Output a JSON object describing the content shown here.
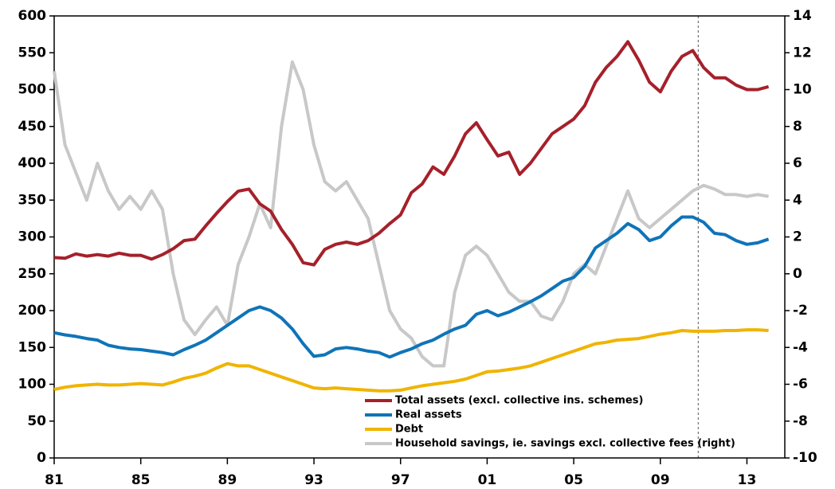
{
  "chart_data": {
    "type": "line",
    "x": [
      1981,
      1981.5,
      1982,
      1982.5,
      1983,
      1983.5,
      1984,
      1984.5,
      1985,
      1985.5,
      1986,
      1986.5,
      1987,
      1987.5,
      1988,
      1988.5,
      1989,
      1989.5,
      1990,
      1990.5,
      1991,
      1991.5,
      1992,
      1992.5,
      1993,
      1993.5,
      1994,
      1994.5,
      1995,
      1995.5,
      1996,
      1996.5,
      1997,
      1997.5,
      1998,
      1998.5,
      1999,
      1999.5,
      2000,
      2000.5,
      2001,
      2001.5,
      2002,
      2002.5,
      2003,
      2003.5,
      2004,
      2004.5,
      2005,
      2005.5,
      2006,
      2006.5,
      2007,
      2007.5,
      2008,
      2008.5,
      2009,
      2009.5,
      2010,
      2010.5,
      2011,
      2011.5,
      2012,
      2012.5,
      2013,
      2013.5,
      2014
    ],
    "series": [
      {
        "name": "Total assets (excl. collective ins. schemes)",
        "color": "#a5202a",
        "values": [
          272,
          271,
          277,
          274,
          276,
          274,
          278,
          275,
          275,
          270,
          276,
          284,
          295,
          297,
          315,
          332,
          348,
          362,
          365,
          345,
          335,
          310,
          290,
          265,
          262,
          283,
          290,
          293,
          290,
          295,
          305,
          318,
          330,
          360,
          372,
          395,
          385,
          410,
          440,
          455,
          432,
          410,
          415,
          385,
          400,
          420,
          440,
          450,
          460,
          478,
          510,
          530,
          545,
          565,
          540,
          510,
          497,
          525,
          545,
          553,
          530,
          516,
          516,
          506,
          500,
          500,
          504
        ]
      },
      {
        "name": "Real assets",
        "color": "#0f74b8",
        "values": [
          170,
          167,
          165,
          162,
          160,
          153,
          150,
          148,
          147,
          145,
          143,
          140,
          147,
          153,
          160,
          170,
          180,
          190,
          200,
          205,
          200,
          190,
          175,
          155,
          138,
          140,
          148,
          150,
          148,
          145,
          143,
          137,
          143,
          148,
          155,
          160,
          168,
          175,
          180,
          195,
          200,
          193,
          198,
          205,
          212,
          220,
          230,
          240,
          245,
          260,
          285,
          295,
          305,
          318,
          310,
          295,
          300,
          315,
          327,
          327,
          320,
          305,
          303,
          295,
          290,
          292,
          297
        ]
      },
      {
        "name": "Debt",
        "color": "#f0b400",
        "values": [
          93,
          96,
          98,
          99,
          100,
          99,
          99,
          100,
          101,
          100,
          99,
          103,
          108,
          111,
          115,
          122,
          128,
          125,
          125,
          120,
          115,
          110,
          105,
          100,
          95,
          94,
          95,
          94,
          93,
          92,
          91,
          91,
          92,
          95,
          98,
          100,
          102,
          104,
          107,
          112,
          117,
          118,
          120,
          122,
          125,
          130,
          135,
          140,
          145,
          150,
          155,
          157,
          160,
          161,
          162,
          165,
          168,
          170,
          173,
          172,
          172,
          172,
          173,
          173,
          174,
          174,
          173
        ]
      },
      {
        "name": "Household savings, ie. savings excl. collective fees (right)",
        "color": "#c8c8c8",
        "axis": "y2",
        "values": [
          11,
          7,
          5.5,
          4,
          6,
          4.5,
          3.5,
          4.2,
          3.5,
          4.5,
          3.5,
          0,
          -2.5,
          -3.3,
          -2.5,
          -1.8,
          -2.8,
          0.5,
          2,
          3.8,
          2.5,
          8,
          11.5,
          10,
          7,
          5,
          4.5,
          5,
          4,
          3,
          0.5,
          -2,
          -3,
          -3.5,
          -4.5,
          -5,
          -5,
          -1,
          1,
          1.5,
          1,
          0,
          -1,
          -1.5,
          -1.5,
          -2.3,
          -2.5,
          -1.5,
          0,
          0.5,
          0,
          1.5,
          3,
          4.5,
          3,
          2.5,
          3,
          3.5,
          4,
          4.5,
          4.8,
          4.6,
          4.3,
          4.3,
          4.2,
          4.3,
          4.2
        ]
      }
    ],
    "xlim": [
      1981,
      2014.75
    ],
    "xticks": [
      {
        "value": 1981,
        "label": "81"
      },
      {
        "value": 1985,
        "label": "85"
      },
      {
        "value": 1989,
        "label": "89"
      },
      {
        "value": 1993,
        "label": "93"
      },
      {
        "value": 1997,
        "label": "97"
      },
      {
        "value": 2001,
        "label": "01"
      },
      {
        "value": 2005,
        "label": "05"
      },
      {
        "value": 2009,
        "label": "09"
      },
      {
        "value": 2013,
        "label": "13"
      }
    ],
    "ylim": [
      0,
      600
    ],
    "yticks": [
      0,
      50,
      100,
      150,
      200,
      250,
      300,
      350,
      400,
      450,
      500,
      550,
      600
    ],
    "y2lim": [
      -10,
      14
    ],
    "y2ticks": [
      -10,
      -8,
      -6,
      -4,
      -2,
      0,
      2,
      4,
      6,
      8,
      10,
      12,
      14
    ],
    "vlines": [
      2010.75
    ],
    "legend": "lower center"
  }
}
